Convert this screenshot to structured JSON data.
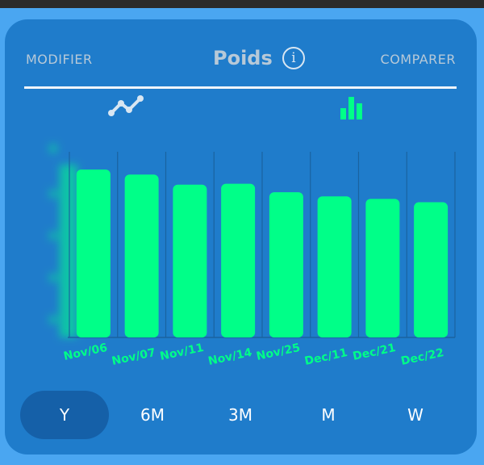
{
  "header": {
    "left_label": "MODIFIER",
    "title": "Poids",
    "info_glyph": "i",
    "right_label": "COMPARER"
  },
  "toggles": {
    "line_icon": "line-chart-icon",
    "bar_icon": "bar-chart-icon",
    "active": "bar"
  },
  "colors": {
    "card_bg": "#1f7ccb",
    "page_bg": "#4aa6f1",
    "bar": "#00ff88",
    "active_range": "#1560a8"
  },
  "chart_data": {
    "type": "bar",
    "categories": [
      "Nov/06",
      "Nov/07",
      "Nov/11",
      "Nov/14",
      "Nov/25",
      "Dec/11",
      "Dec/21",
      "Dec/22"
    ],
    "values": [
      100,
      97,
      91,
      91.5,
      86.5,
      84,
      82.5,
      80.5
    ],
    "ylim": [
      0,
      100
    ],
    "grid": "vertical lines between bars",
    "y_axis_labels": "hidden (blurred)"
  },
  "ranges": {
    "items": [
      "Y",
      "6M",
      "3M",
      "M",
      "W"
    ],
    "selected": "Y"
  }
}
